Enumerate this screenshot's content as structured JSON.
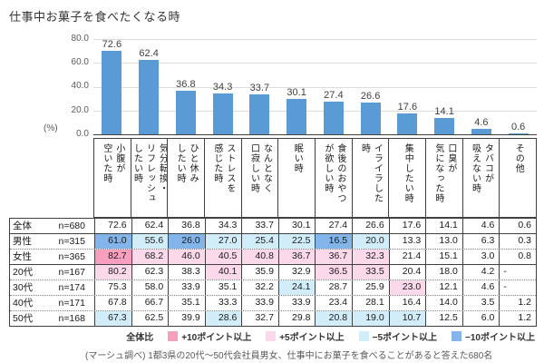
{
  "title": "仕事中お菓子を食べたくなる時",
  "colors": {
    "bar": "#5B9BD5",
    "p10": "#F89EBE",
    "p5": "#FBD9EB",
    "m5": "#D2EDFA",
    "m10": "#83B5EA"
  },
  "chart_data": {
    "type": "bar",
    "title": "仕事中お菓子を食べたくなる時",
    "ylabel": "(%)",
    "ylim": [
      0,
      80
    ],
    "yticks": [
      "80.0",
      "60.0",
      "40.0",
      "20.0",
      "0.0"
    ],
    "grid": true,
    "categories": [
      "小腹が空いた時",
      "気分転換・リフレッシュしたい時",
      "ひと休みしたい時",
      "ストレスを感じた時",
      "なんとなく口寂しい時",
      "眠い時",
      "食後のおやつが欲しい時",
      "イライラした時",
      "集中したい時",
      "口臭が気になった時",
      "タバコが吸えない時",
      "その他"
    ],
    "values": [
      72.6,
      62.4,
      36.8,
      34.3,
      33.7,
      30.1,
      27.4,
      26.6,
      17.6,
      14.1,
      4.6,
      0.6
    ]
  },
  "table": {
    "columns_display": [
      "小腹が\n空いた時",
      "気分転換・\nリフレッシュ\nしたい時",
      "ひと休み\nしたい時",
      "ストレスを\n感じた時",
      "なんとなく\n口寂しい時",
      "眠い時",
      "食後のおやつ\nが欲しい時",
      "イライラした\n時",
      "集中したい時",
      "口臭が\n気になった時",
      "タバコが\n吸えない時",
      "その他"
    ],
    "rows": [
      {
        "label": "全体",
        "n": "n=680",
        "values": [
          "72.6",
          "62.4",
          "36.8",
          "34.3",
          "33.7",
          "30.1",
          "27.4",
          "26.6",
          "17.6",
          "14.1",
          "4.6",
          "0.6"
        ],
        "highlights": [
          "",
          "",
          "",
          "",
          "",
          "",
          "",
          "",
          "",
          "",
          "",
          ""
        ]
      },
      {
        "label": "男性",
        "n": "n=315",
        "values": [
          "61.0",
          "55.6",
          "26.0",
          "27.0",
          "25.4",
          "22.5",
          "16.5",
          "20.0",
          "13.3",
          "13.0",
          "6.3",
          "0.3"
        ],
        "highlights": [
          "m10",
          "m5",
          "m10",
          "m5",
          "m5",
          "m5",
          "m10",
          "m5",
          "",
          "",
          "",
          ""
        ]
      },
      {
        "label": "女性",
        "n": "n=365",
        "values": [
          "82.7",
          "68.2",
          "46.0",
          "40.5",
          "40.8",
          "36.7",
          "36.7",
          "32.3",
          "21.4",
          "15.1",
          "3.0",
          "0.8"
        ],
        "highlights": [
          "p10",
          "p5",
          "p5",
          "p5",
          "p5",
          "p5",
          "p5",
          "p5",
          "",
          "",
          "",
          ""
        ]
      },
      {
        "label": "20代",
        "n": "n=167",
        "values": [
          "80.2",
          "62.3",
          "38.3",
          "40.1",
          "35.9",
          "32.9",
          "36.5",
          "33.5",
          "20.4",
          "18.0",
          "4.2",
          "-"
        ],
        "highlights": [
          "p5",
          "",
          "",
          "p5",
          "",
          "",
          "p5",
          "p5",
          "",
          "",
          "",
          ""
        ]
      },
      {
        "label": "30代",
        "n": "n=174",
        "values": [
          "75.3",
          "58.0",
          "33.9",
          "35.1",
          "32.2",
          "24.1",
          "28.7",
          "25.9",
          "23.0",
          "12.1",
          "4.6",
          "-"
        ],
        "highlights": [
          "",
          "",
          "",
          "",
          "",
          "m5",
          "",
          "",
          "p5",
          "",
          "",
          ""
        ]
      },
      {
        "label": "40代",
        "n": "n=171",
        "values": [
          "67.8",
          "66.7",
          "35.1",
          "33.3",
          "33.9",
          "33.9",
          "23.4",
          "28.1",
          "16.4",
          "14.0",
          "3.5",
          "1.2"
        ],
        "highlights": [
          "",
          "",
          "",
          "",
          "",
          "",
          "",
          "",
          "",
          "",
          "",
          ""
        ]
      },
      {
        "label": "50代",
        "n": "n=168",
        "values": [
          "67.3",
          "62.5",
          "39.9",
          "28.6",
          "32.7",
          "29.8",
          "20.8",
          "19.0",
          "10.7",
          "12.5",
          "6.0",
          "1.2"
        ],
        "highlights": [
          "m5",
          "",
          "",
          "m5",
          "",
          "",
          "m5",
          "m5",
          "m5",
          "",
          "",
          ""
        ]
      }
    ]
  },
  "legend": {
    "title": "全体比",
    "items": [
      {
        "code": "p10",
        "label": "+10ポイント以上"
      },
      {
        "code": "p5",
        "label": "+5ポイント以上"
      },
      {
        "code": "m5",
        "label": "−5ポイント以上"
      },
      {
        "code": "m10",
        "label": "−10ポイント以上"
      }
    ]
  },
  "footer": "(マーシュ調べ) 1都3県の20代～50代会社員男女、仕事中にお菓子を食べることがあると答えた680名"
}
